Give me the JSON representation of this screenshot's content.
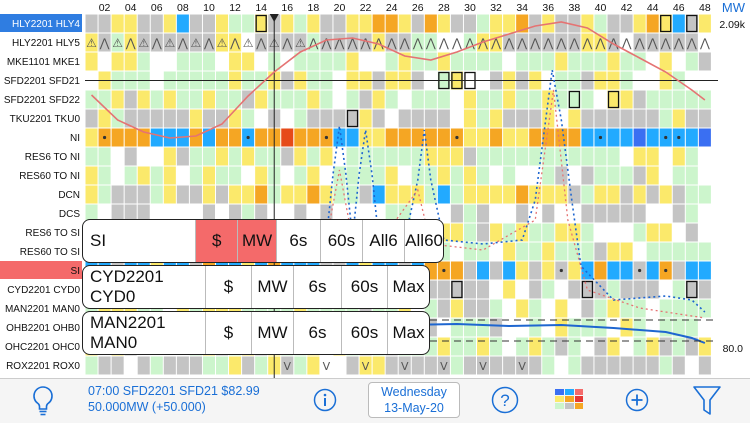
{
  "header": {
    "columns": [
      "02",
      "04",
      "06",
      "08",
      "10",
      "12",
      "14",
      "16",
      "18",
      "20",
      "22",
      "24",
      "26",
      "28",
      "30",
      "32",
      "34",
      "36",
      "38",
      "40",
      "42",
      "44",
      "46",
      "48"
    ],
    "unit": "MW",
    "max_value": "2.09k",
    "min_value": "80.0"
  },
  "rows": [
    {
      "label": "HLY2201 HLY4",
      "highlight": "blue"
    },
    {
      "label": "HLY2201 HLY5",
      "highlight": ""
    },
    {
      "label": "MKE1101 MKE1",
      "highlight": ""
    },
    {
      "label": "SFD2201 SFD21",
      "highlight": ""
    },
    {
      "label": "SFD2201 SFD22",
      "highlight": ""
    },
    {
      "label": "TKU2201 TKU0",
      "highlight": ""
    },
    {
      "label": "NI",
      "highlight": ""
    },
    {
      "label": "RES6 TO NI",
      "highlight": ""
    },
    {
      "label": "RES60 TO NI",
      "highlight": ""
    },
    {
      "label": "DCN",
      "highlight": ""
    },
    {
      "label": "DCS",
      "highlight": ""
    },
    {
      "label": "RES6 TO SI",
      "highlight": ""
    },
    {
      "label": "RES60 TO SI",
      "highlight": ""
    },
    {
      "label": "SI",
      "highlight": "red"
    },
    {
      "label": "CYD2201 CYD0",
      "highlight": ""
    },
    {
      "label": "MAN2201 MAN0",
      "highlight": ""
    },
    {
      "label": "OHB2201 OHB0",
      "highlight": ""
    },
    {
      "label": "OHC2201 OHC0",
      "highlight": ""
    },
    {
      "label": "ROX2201 ROX0",
      "highlight": ""
    }
  ],
  "overlays": [
    {
      "name": "SI",
      "cells": [
        "$",
        "MW",
        "6s",
        "60s",
        "All6",
        "All60"
      ],
      "active": "MW"
    },
    {
      "name": "CYD2201 CYD0",
      "cells": [
        "$",
        "MW",
        "6s",
        "60s",
        "Max"
      ],
      "active": ""
    },
    {
      "name": "MAN2201 MAN0",
      "cells": [
        "$",
        "MW",
        "6s",
        "60s",
        "Max"
      ],
      "active": ""
    }
  ],
  "bottom": {
    "info_line1": "07:00 SFD2201 SFD21 $82.99",
    "info_line2": "50.000MW (+50.000)",
    "date_line1": "Wednesday",
    "date_line2": "13-May-20"
  },
  "colors": {
    "accent": "#1a6fd6",
    "selected_red": "#f46a6a",
    "orange": "#f5a623",
    "yellow": "#fbe96b",
    "lightgreen": "#ccf5cc",
    "cyan": "#22aaff",
    "blue": "#3a6ff2",
    "grey": "#c4c4c4"
  }
}
